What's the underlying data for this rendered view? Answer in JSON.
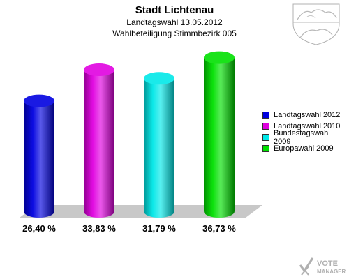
{
  "header": {
    "title": "Stadt Lichtenau",
    "subtitle": "Landtagswahl 13.05.2012",
    "subtitle2": "Wahlbeteiligung Stimmbezirk 005"
  },
  "chart_data": {
    "type": "bar",
    "title": "Stadt Lichtenau",
    "subtitle": "Landtagswahl 13.05.2012 · Wahlbeteiligung Stimmbezirk 005",
    "categories": [
      "Landtagswahl 2012",
      "Landtagswahl 2010",
      "Bundestagswahl 2009",
      "Europawahl 2009"
    ],
    "values": [
      26.4,
      33.83,
      31.79,
      36.73
    ],
    "value_labels": [
      "26,40 %",
      "33,83 %",
      "31,79 %",
      "36,73 %"
    ],
    "colors": [
      "#0000e0",
      "#e000e0",
      "#00e8e8",
      "#00e000"
    ],
    "ylim": [
      0,
      40
    ],
    "grid": false,
    "legend_position": "right",
    "style": "3d-cylinder"
  },
  "legend": {
    "items": [
      "Landtagswahl 2012",
      "Landtagswahl 2010",
      "Bundestagswahl 2009",
      "Europawahl 2009"
    ]
  },
  "branding": {
    "logo_text_top": "VOTE",
    "logo_text_bottom": "MANAGER"
  }
}
